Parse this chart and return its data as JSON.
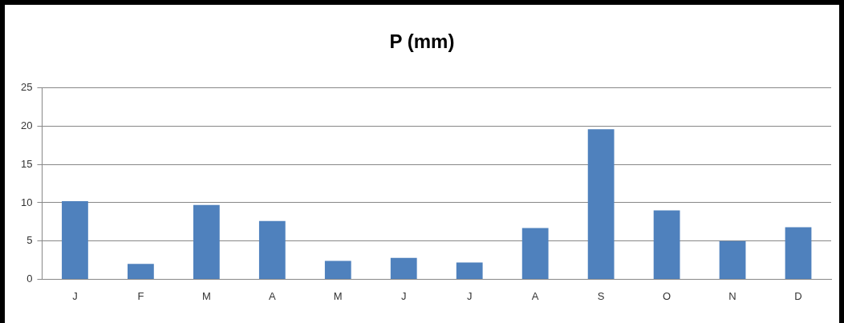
{
  "chart_data": {
    "type": "bar",
    "title": "P  (mm)",
    "categories": [
      "J",
      "F",
      "M",
      "A",
      "M",
      "J",
      "J",
      "A",
      "S",
      "O",
      "N",
      "D"
    ],
    "values": [
      10.2,
      2.0,
      9.7,
      7.6,
      2.4,
      2.8,
      2.2,
      6.7,
      19.6,
      9.0,
      5.0,
      6.8
    ],
    "color": "#4f81bd",
    "ylim": [
      0,
      25
    ],
    "yticks": [
      0,
      5,
      10,
      15,
      20,
      25
    ],
    "grid": "y",
    "legend": false
  }
}
